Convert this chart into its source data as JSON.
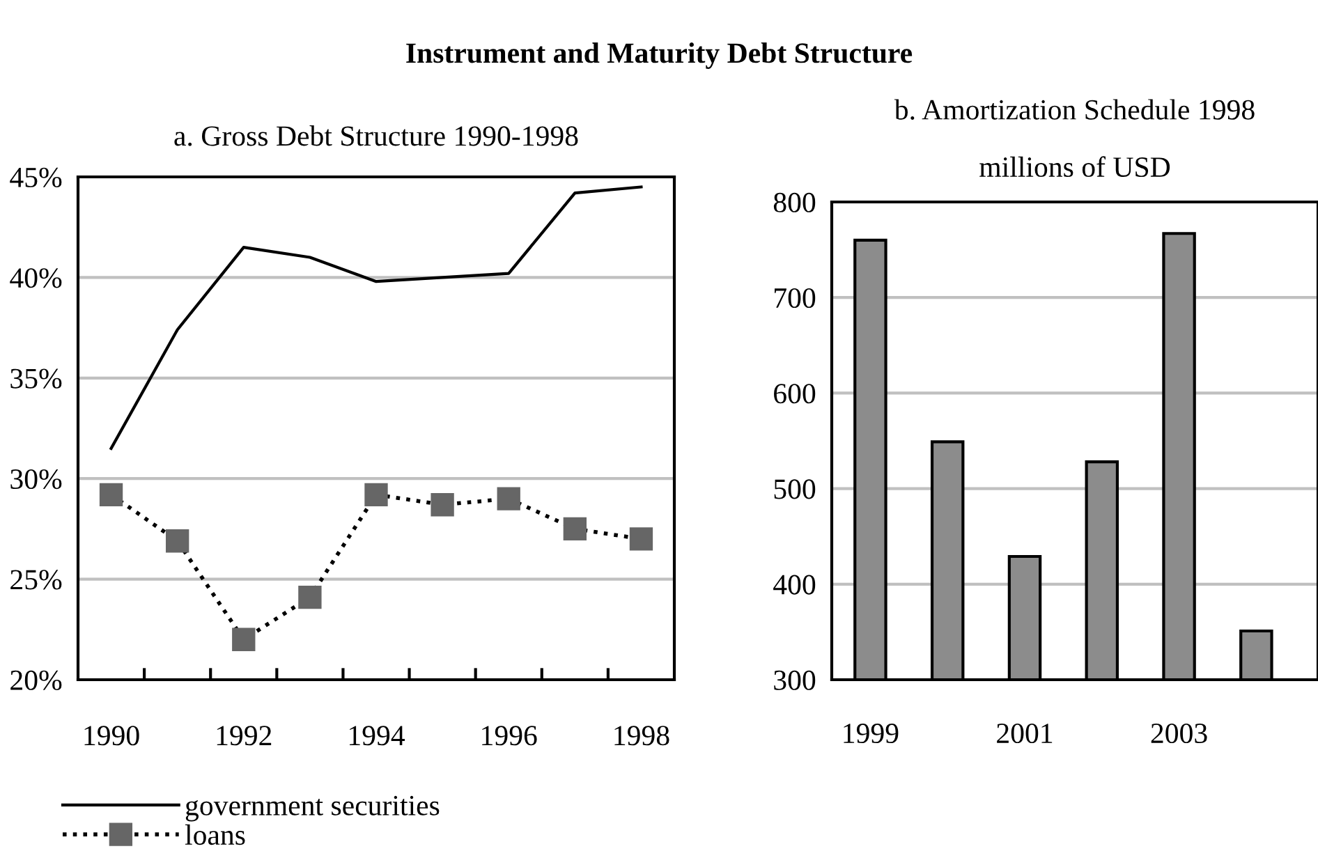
{
  "chart_data": [
    {
      "type": "line",
      "title": "Instrument and Maturity Debt Structure",
      "subtitle": "a. Gross Debt Structure 1990-1998",
      "categories": [
        "1990",
        null,
        "1992",
        null,
        "1994",
        null,
        "1996",
        null,
        "1998"
      ],
      "series": [
        {
          "name": "government securities",
          "color": "#000000",
          "marker": "none",
          "line_style": "solid",
          "values": [
            31.5,
            37.4,
            41.5,
            41.0,
            39.8,
            40.0,
            40.2,
            44.2,
            44.5
          ]
        },
        {
          "name": "loans",
          "color": "#666666",
          "marker": "square",
          "line_style": "dotted",
          "values": [
            29.2,
            26.9,
            22.0,
            24.1,
            29.2,
            28.7,
            29.0,
            27.5,
            27.0
          ]
        }
      ],
      "ylim": [
        20,
        45
      ],
      "yticks": [
        {
          "value": 20,
          "label": "20%"
        },
        {
          "value": 25,
          "label": "25%"
        },
        {
          "value": 30,
          "label": "30%"
        },
        {
          "value": 35,
          "label": "35%"
        },
        {
          "value": 40,
          "label": "40%"
        },
        {
          "value": 45,
          "label": "45%"
        }
      ],
      "grid": "y",
      "legend": "bottom"
    },
    {
      "type": "bar",
      "title": "b. Amortization Schedule 1998",
      "subtitle": "millions of USD",
      "categories": [
        "1999",
        null,
        "2001",
        null,
        "2003",
        null
      ],
      "values": [
        760,
        549,
        429,
        528,
        767,
        351
      ],
      "color": "#8c8c8c",
      "ylim": [
        300,
        800
      ],
      "yticks": [
        300,
        400,
        500,
        600,
        700,
        800
      ],
      "grid": "y"
    }
  ]
}
